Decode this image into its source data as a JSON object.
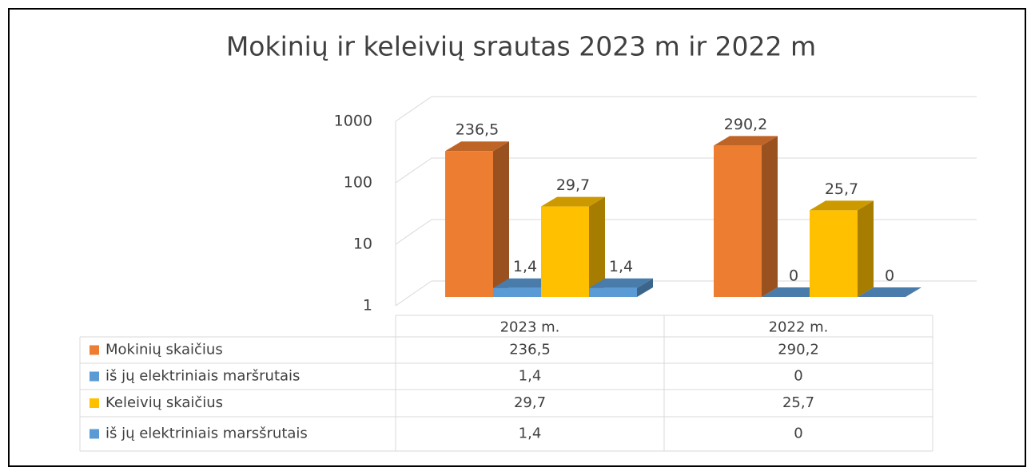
{
  "chart_data": {
    "type": "bar",
    "title": "Mokinių ir keleivių srautas 2023 m ir 2022 m",
    "categories": [
      "2023 m.",
      "2022 m."
    ],
    "series": [
      {
        "name": "Mokinių skaičius",
        "color": "#ED7D31",
        "values": [
          236.5,
          290.2
        ],
        "value_labels": [
          "236,5",
          "290,2"
        ]
      },
      {
        "name": "iš jų elektriniais maršrutais",
        "color": "#5B9BD5",
        "values": [
          1.4,
          0
        ],
        "value_labels": [
          "1,4",
          "0"
        ]
      },
      {
        "name": "Keleivių skaičius",
        "color": "#FFC000",
        "values": [
          29.7,
          25.7
        ],
        "value_labels": [
          "29,7",
          "25,7"
        ]
      },
      {
        "name": "iš jų elektriniais marsšrutais",
        "color": "#5B9BD5",
        "values": [
          1.4,
          0
        ],
        "value_labels": [
          "1,4",
          "0"
        ]
      }
    ],
    "ylim": [
      1,
      1000
    ],
    "yticks": [
      1,
      10,
      100,
      1000
    ],
    "log_scale": true,
    "grid": true,
    "data_table": true
  }
}
